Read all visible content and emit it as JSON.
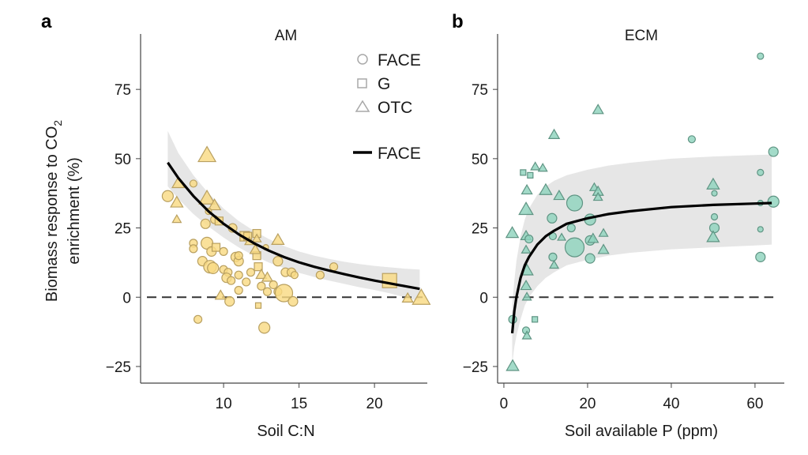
{
  "chart_data": [
    {
      "type": "scatter",
      "panel_letter": "a",
      "title": "AM",
      "xlabel": "Soil C:N",
      "ylabel_line1": "Biomass response to CO",
      "ylabel_sub": "2",
      "ylabel_line2": "enrichment (%)",
      "xlim": [
        4.5,
        23.5
      ],
      "ylim": [
        -31,
        95
      ],
      "xticks": [
        10,
        15,
        20
      ],
      "yticks": [
        -25,
        0,
        25,
        50,
        75
      ],
      "ytick_labels": [
        "−25",
        "0",
        "25",
        "50",
        "75"
      ],
      "reference_line_y": 0,
      "marker_color": "#f9da84",
      "marker_edge": "#b9a060",
      "legend": {
        "position": "top-right",
        "entries": [
          {
            "shape": "circle",
            "label": "FACE"
          },
          {
            "shape": "square",
            "label": "G"
          },
          {
            "shape": "triangle",
            "label": "OTC"
          },
          {
            "shape": "line",
            "label": "FACE"
          }
        ]
      },
      "fit": {
        "x": [
          6.3,
          7,
          8,
          9,
          10,
          11,
          12,
          13,
          14,
          15,
          16,
          17,
          18,
          19,
          20,
          21,
          22,
          23
        ],
        "y": [
          48.6,
          43,
          36.5,
          31,
          26.5,
          22.7,
          19.5,
          16.8,
          14.5,
          12.6,
          11,
          9.6,
          8.3,
          7.1,
          6,
          5,
          4,
          3
        ],
        "upper": [
          60,
          52,
          44,
          37.5,
          32,
          27.5,
          24,
          21,
          18.5,
          16.5,
          15,
          13.8,
          12.8,
          12,
          11.3,
          10.8,
          10.3,
          10
        ],
        "lower": [
          40,
          35.5,
          30,
          25.5,
          21.5,
          18,
          15,
          12.5,
          10.5,
          8.8,
          7.3,
          6,
          4.8,
          3.6,
          2.6,
          1.4,
          0,
          -1.5
        ]
      },
      "points": [
        {
          "x": 6.3,
          "y": 36.5,
          "shape": "circle",
          "size": 7
        },
        {
          "x": 7.0,
          "y": 41,
          "shape": "triangle",
          "size": 7
        },
        {
          "x": 6.9,
          "y": 34,
          "shape": "triangle",
          "size": 7
        },
        {
          "x": 6.9,
          "y": 28,
          "shape": "triangle",
          "size": 5
        },
        {
          "x": 8.0,
          "y": 41,
          "shape": "circle",
          "size": 4.5
        },
        {
          "x": 8.9,
          "y": 51,
          "shape": "triangle",
          "size": 10
        },
        {
          "x": 8.9,
          "y": 35.5,
          "shape": "triangle",
          "size": 9
        },
        {
          "x": 9.4,
          "y": 33,
          "shape": "triangle",
          "size": 7
        },
        {
          "x": 9.0,
          "y": 31,
          "shape": "circle",
          "size": 4
        },
        {
          "x": 9.4,
          "y": 28,
          "shape": "circle",
          "size": 5
        },
        {
          "x": 9.7,
          "y": 27.5,
          "shape": "square",
          "size": 5
        },
        {
          "x": 8.8,
          "y": 26.5,
          "shape": "circle",
          "size": 6
        },
        {
          "x": 10.6,
          "y": 25,
          "shape": "circle",
          "size": 5.5
        },
        {
          "x": 11.4,
          "y": 22,
          "shape": "square",
          "size": 6
        },
        {
          "x": 11.6,
          "y": 22,
          "shape": "square",
          "size": 5
        },
        {
          "x": 11.7,
          "y": 20,
          "shape": "triangle",
          "size": 5
        },
        {
          "x": 12.2,
          "y": 23,
          "shape": "square",
          "size": 5
        },
        {
          "x": 12.2,
          "y": 21,
          "shape": "triangle",
          "size": 5
        },
        {
          "x": 13.6,
          "y": 20.5,
          "shape": "triangle",
          "size": 7
        },
        {
          "x": 8.0,
          "y": 19.5,
          "shape": "circle",
          "size": 5
        },
        {
          "x": 8.0,
          "y": 17.5,
          "shape": "circle",
          "size": 5
        },
        {
          "x": 8.9,
          "y": 19.5,
          "shape": "circle",
          "size": 7.5
        },
        {
          "x": 9.2,
          "y": 16.5,
          "shape": "circle",
          "size": 6
        },
        {
          "x": 9.5,
          "y": 18,
          "shape": "square",
          "size": 5
        },
        {
          "x": 10.0,
          "y": 16.5,
          "shape": "circle",
          "size": 5
        },
        {
          "x": 10.8,
          "y": 14.5,
          "shape": "circle",
          "size": 6
        },
        {
          "x": 11.0,
          "y": 13,
          "shape": "circle",
          "size": 6
        },
        {
          "x": 11.0,
          "y": 15,
          "shape": "circle",
          "size": 5
        },
        {
          "x": 12.2,
          "y": 15,
          "shape": "square",
          "size": 5
        },
        {
          "x": 12.1,
          "y": 17,
          "shape": "triangle",
          "size": 6
        },
        {
          "x": 12.8,
          "y": 18,
          "shape": "circle",
          "size": 3.5
        },
        {
          "x": 8.6,
          "y": 13,
          "shape": "circle",
          "size": 6
        },
        {
          "x": 9.1,
          "y": 11,
          "shape": "circle",
          "size": 8
        },
        {
          "x": 9.3,
          "y": 10.5,
          "shape": "circle",
          "size": 7
        },
        {
          "x": 10.0,
          "y": 10,
          "shape": "circle",
          "size": 5
        },
        {
          "x": 10.3,
          "y": 9,
          "shape": "circle",
          "size": 5
        },
        {
          "x": 10.2,
          "y": 7,
          "shape": "circle",
          "size": 6
        },
        {
          "x": 10.5,
          "y": 6,
          "shape": "circle",
          "size": 5
        },
        {
          "x": 11.0,
          "y": 8,
          "shape": "circle",
          "size": 5
        },
        {
          "x": 11.5,
          "y": 5.5,
          "shape": "circle",
          "size": 5
        },
        {
          "x": 11.8,
          "y": 9,
          "shape": "circle",
          "size": 5
        },
        {
          "x": 12.3,
          "y": 11,
          "shape": "square",
          "size": 5
        },
        {
          "x": 12.5,
          "y": 8,
          "shape": "triangle",
          "size": 6
        },
        {
          "x": 12.9,
          "y": 7,
          "shape": "triangle",
          "size": 6
        },
        {
          "x": 13.6,
          "y": 13,
          "shape": "circle",
          "size": 6
        },
        {
          "x": 14.1,
          "y": 9,
          "shape": "circle",
          "size": 5.5
        },
        {
          "x": 14.5,
          "y": 9,
          "shape": "circle",
          "size": 5.5
        },
        {
          "x": 14.7,
          "y": 8,
          "shape": "circle",
          "size": 4.5
        },
        {
          "x": 11.0,
          "y": 2.5,
          "shape": "circle",
          "size": 5
        },
        {
          "x": 12.5,
          "y": 4,
          "shape": "circle",
          "size": 5
        },
        {
          "x": 12.9,
          "y": 2,
          "shape": "circle",
          "size": 5
        },
        {
          "x": 13.3,
          "y": 4.5,
          "shape": "circle",
          "size": 5
        },
        {
          "x": 13.6,
          "y": 2,
          "shape": "circle",
          "size": 5
        },
        {
          "x": 14.0,
          "y": 1.5,
          "shape": "circle",
          "size": 11
        },
        {
          "x": 14.6,
          "y": -1.5,
          "shape": "circle",
          "size": 6
        },
        {
          "x": 9.8,
          "y": 0.5,
          "shape": "triangle",
          "size": 6
        },
        {
          "x": 10.4,
          "y": -1.5,
          "shape": "circle",
          "size": 6
        },
        {
          "x": 12.3,
          "y": -3,
          "shape": "square",
          "size": 3.5
        },
        {
          "x": 8.3,
          "y": -8,
          "shape": "circle",
          "size": 5
        },
        {
          "x": 12.7,
          "y": -11,
          "shape": "circle",
          "size": 7
        },
        {
          "x": 17.3,
          "y": 11,
          "shape": "circle",
          "size": 5
        },
        {
          "x": 16.4,
          "y": 8,
          "shape": "circle",
          "size": 5
        },
        {
          "x": 21.0,
          "y": 6,
          "shape": "square",
          "size": 9
        },
        {
          "x": 22.2,
          "y": -0.5,
          "shape": "triangle",
          "size": 6
        },
        {
          "x": 23.1,
          "y": -0.5,
          "shape": "triangle",
          "size": 10
        }
      ]
    },
    {
      "type": "scatter",
      "panel_letter": "b",
      "title": "ECM",
      "xlabel": "Soil available P (ppm)",
      "xlim": [
        -1.5,
        67
      ],
      "ylim": [
        -31,
        95
      ],
      "xticks": [
        0,
        20,
        40,
        60
      ],
      "yticks": [
        -25,
        0,
        25,
        50,
        75
      ],
      "ytick_labels": [
        "−25",
        "0",
        "25",
        "50",
        "75"
      ],
      "reference_line_y": 0,
      "marker_color": "#8fd3bd",
      "marker_edge": "#5f9483",
      "fit": {
        "x": [
          2,
          2.5,
          3,
          4,
          5,
          6,
          8,
          10,
          12,
          15,
          20,
          25,
          30,
          40,
          50,
          60,
          64
        ],
        "y": [
          -13,
          -5,
          0,
          7,
          11.5,
          14.5,
          19,
          22,
          24,
          26.5,
          28.5,
          30,
          31,
          32.5,
          33.3,
          33.8,
          34
        ],
        "upper": [
          -3,
          6,
          13,
          22,
          28,
          32,
          37,
          40,
          42,
          44,
          46,
          47.5,
          48.5,
          50,
          50.8,
          51.3,
          51.5
        ],
        "lower": [
          -24,
          -18,
          -14,
          -8,
          -3,
          0,
          4,
          7,
          9,
          11.5,
          13.5,
          15,
          16,
          17.3,
          18,
          18.7,
          19
        ]
      },
      "points": [
        {
          "x": 2.0,
          "y": 23,
          "shape": "triangle",
          "size": 7
        },
        {
          "x": 2.1,
          "y": -8,
          "shape": "circle",
          "size": 5
        },
        {
          "x": 2.1,
          "y": -25,
          "shape": "triangle",
          "size": 7
        },
        {
          "x": 4.6,
          "y": 45,
          "shape": "square",
          "size": 3.5
        },
        {
          "x": 6.3,
          "y": 44,
          "shape": "square",
          "size": 3.5
        },
        {
          "x": 7.5,
          "y": 47,
          "shape": "triangle",
          "size": 5
        },
        {
          "x": 5.5,
          "y": 38.5,
          "shape": "triangle",
          "size": 6
        },
        {
          "x": 10.0,
          "y": 38.5,
          "shape": "triangle",
          "size": 7
        },
        {
          "x": 5.3,
          "y": 31.5,
          "shape": "triangle",
          "size": 8
        },
        {
          "x": 13.2,
          "y": 36.5,
          "shape": "triangle",
          "size": 6
        },
        {
          "x": 12.0,
          "y": 58.5,
          "shape": "triangle",
          "size": 6
        },
        {
          "x": 22.5,
          "y": 67.5,
          "shape": "triangle",
          "size": 6
        },
        {
          "x": 9.3,
          "y": 46.5,
          "shape": "triangle",
          "size": 5
        },
        {
          "x": 16.9,
          "y": 34,
          "shape": "circle",
          "size": 10
        },
        {
          "x": 11.5,
          "y": 28.5,
          "shape": "circle",
          "size": 6
        },
        {
          "x": 20.6,
          "y": 28,
          "shape": "circle",
          "size": 7
        },
        {
          "x": 16.1,
          "y": 25,
          "shape": "circle",
          "size": 5
        },
        {
          "x": 5.3,
          "y": 22,
          "shape": "triangle",
          "size": 6
        },
        {
          "x": 6.0,
          "y": 21,
          "shape": "circle",
          "size": 5
        },
        {
          "x": 11.7,
          "y": 22,
          "shape": "circle",
          "size": 4.5
        },
        {
          "x": 13.8,
          "y": 21.5,
          "shape": "triangle",
          "size": 4.5
        },
        {
          "x": 16.9,
          "y": 18,
          "shape": "circle",
          "size": 12
        },
        {
          "x": 20.6,
          "y": 20.5,
          "shape": "circle",
          "size": 6
        },
        {
          "x": 21.3,
          "y": 21,
          "shape": "triangle",
          "size": 6
        },
        {
          "x": 23.8,
          "y": 23,
          "shape": "triangle",
          "size": 5
        },
        {
          "x": 11.7,
          "y": 14.5,
          "shape": "circle",
          "size": 5
        },
        {
          "x": 20.6,
          "y": 14,
          "shape": "circle",
          "size": 6
        },
        {
          "x": 23.8,
          "y": 17,
          "shape": "triangle",
          "size": 6
        },
        {
          "x": 5.3,
          "y": 17,
          "shape": "triangle",
          "size": 5
        },
        {
          "x": 12.0,
          "y": 11.5,
          "shape": "triangle",
          "size": 5
        },
        {
          "x": 21.6,
          "y": 39.5,
          "shape": "triangle",
          "size": 5
        },
        {
          "x": 22.5,
          "y": 38,
          "shape": "triangle",
          "size": 6
        },
        {
          "x": 22.5,
          "y": 36,
          "shape": "triangle",
          "size": 5
        },
        {
          "x": 5.5,
          "y": 9.5,
          "shape": "triangle",
          "size": 7
        },
        {
          "x": 5.3,
          "y": 4,
          "shape": "triangle",
          "size": 6
        },
        {
          "x": 5.5,
          "y": 0,
          "shape": "triangle",
          "size": 5
        },
        {
          "x": 7.4,
          "y": -8,
          "shape": "square",
          "size": 3.5
        },
        {
          "x": 5.3,
          "y": -12,
          "shape": "circle",
          "size": 4.5
        },
        {
          "x": 5.5,
          "y": -14,
          "shape": "triangle",
          "size": 5
        },
        {
          "x": 44.9,
          "y": 57,
          "shape": "circle",
          "size": 4.5
        },
        {
          "x": 61.3,
          "y": 87,
          "shape": "circle",
          "size": 4
        },
        {
          "x": 64.4,
          "y": 52.5,
          "shape": "circle",
          "size": 6
        },
        {
          "x": 61.3,
          "y": 45,
          "shape": "circle",
          "size": 4
        },
        {
          "x": 50.0,
          "y": 40.5,
          "shape": "triangle",
          "size": 7
        },
        {
          "x": 50.3,
          "y": 37.5,
          "shape": "circle",
          "size": 3.5
        },
        {
          "x": 61.3,
          "y": 34,
          "shape": "circle",
          "size": 3.5
        },
        {
          "x": 64.4,
          "y": 34.5,
          "shape": "circle",
          "size": 7
        },
        {
          "x": 50.3,
          "y": 29,
          "shape": "circle",
          "size": 4
        },
        {
          "x": 50.3,
          "y": 25,
          "shape": "circle",
          "size": 6
        },
        {
          "x": 50.0,
          "y": 21.5,
          "shape": "triangle",
          "size": 7
        },
        {
          "x": 61.3,
          "y": 24.5,
          "shape": "circle",
          "size": 3.5
        },
        {
          "x": 61.3,
          "y": 14.5,
          "shape": "circle",
          "size": 6
        }
      ]
    }
  ]
}
